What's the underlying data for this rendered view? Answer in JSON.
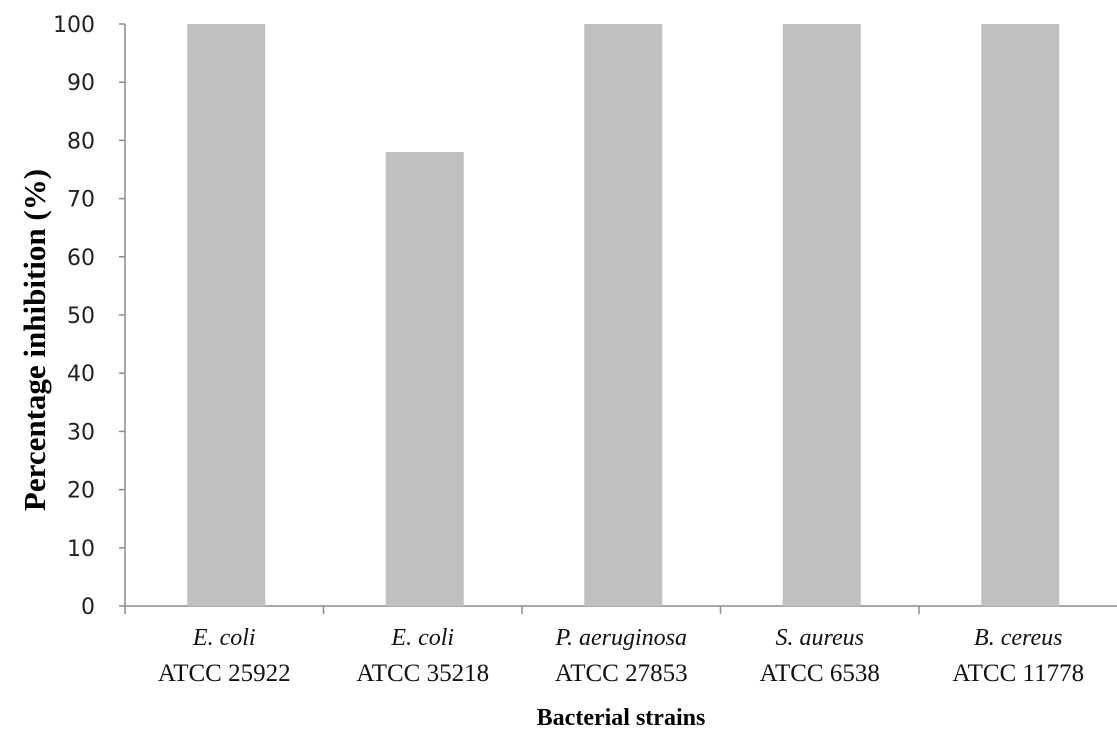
{
  "chart_data": {
    "type": "bar",
    "title": "",
    "xlabel": "Bacterial strains",
    "ylabel": "Percentage inhibition (%)",
    "ylim": [
      0,
      100
    ],
    "yticks": [
      0,
      10,
      20,
      30,
      40,
      50,
      60,
      70,
      80,
      90,
      100
    ],
    "grid": false,
    "legend": "none",
    "categories": [
      {
        "species": "E. coli",
        "strain": "ATCC 25922"
      },
      {
        "species": "E. coli",
        "strain": "ATCC 35218"
      },
      {
        "species": "P. aeruginosa",
        "strain": "ATCC 27853"
      },
      {
        "species": "S. aureus",
        "strain": "ATCC 6538"
      },
      {
        "species": "B. cereus",
        "strain": "ATCC 11778"
      }
    ],
    "values": [
      100,
      78,
      100,
      100,
      100
    ],
    "colors": {
      "bar": "#c0c0c0",
      "axis": "#8c8c8c"
    }
  }
}
